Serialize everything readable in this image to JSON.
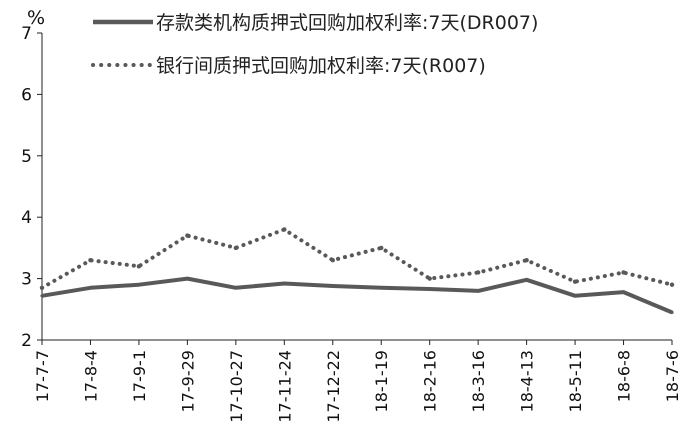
{
  "chart_data": {
    "type": "line",
    "y_unit": "%",
    "ylim": [
      2,
      7
    ],
    "y_ticks": [
      "2",
      "3",
      "4",
      "5",
      "6",
      "7"
    ],
    "x_tick_labels": [
      "17-7-7",
      "17-8-4",
      "17-9-1",
      "17-9-29",
      "17-10-27",
      "17-11-24",
      "17-12-22",
      "18-1-19",
      "18-2-16",
      "18-3-16",
      "18-4-13",
      "18-5-11",
      "18-6-8",
      "18-7-6"
    ],
    "grid": false,
    "legend_position": "top",
    "series": [
      {
        "name": "存款类机构质押式回购加权利率:7天(DR007)",
        "style": "solid",
        "color": "#595959",
        "x": [
          "17-7-7",
          "17-8-4",
          "17-9-1",
          "17-9-29",
          "17-10-27",
          "17-11-24",
          "17-12-22",
          "18-1-19",
          "18-2-16",
          "18-3-16",
          "18-4-13",
          "18-5-11",
          "18-6-8",
          "18-7-6"
        ],
        "values": [
          2.72,
          2.85,
          2.9,
          3.0,
          2.85,
          2.92,
          2.88,
          2.85,
          2.83,
          2.8,
          2.98,
          2.72,
          2.78,
          2.45
        ]
      },
      {
        "name": "银行间质押式回购加权利率:7天(R007)",
        "style": "dotted",
        "color": "#595959",
        "x": [
          "17-7-7",
          "17-8-4",
          "17-9-1",
          "17-9-29",
          "17-10-27",
          "17-11-24",
          "17-12-22",
          "18-1-19",
          "18-2-16",
          "18-3-16",
          "18-4-13",
          "18-5-11",
          "18-6-8",
          "18-7-6"
        ],
        "values": [
          2.85,
          3.3,
          3.2,
          3.7,
          3.5,
          3.8,
          3.3,
          3.5,
          3.0,
          3.1,
          3.3,
          2.95,
          3.1,
          2.9
        ]
      }
    ]
  }
}
